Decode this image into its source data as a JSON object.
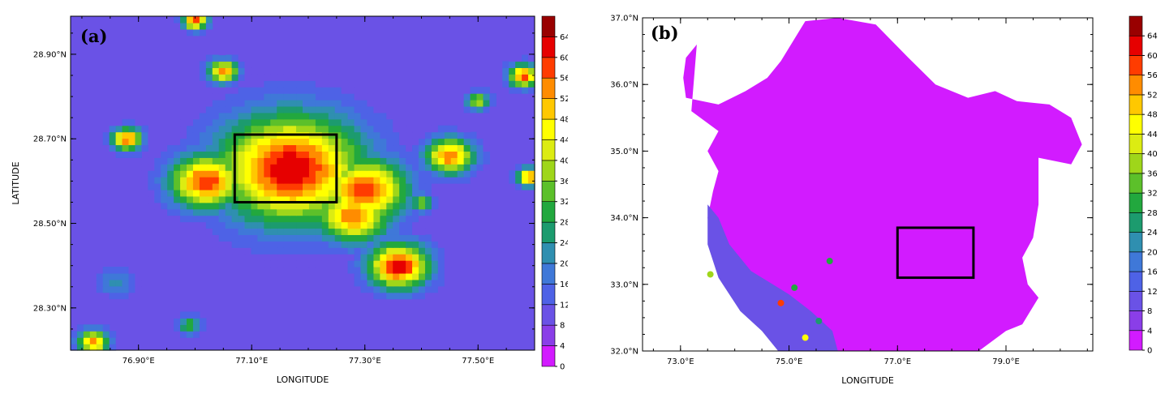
{
  "colorbar": {
    "levels": [
      0,
      4,
      8,
      12,
      16,
      20,
      24,
      28,
      32,
      36,
      40,
      44,
      48,
      52,
      56,
      60,
      64
    ],
    "colors": [
      "#d21bff",
      "#8a3ee8",
      "#6a52e6",
      "#4e62e6",
      "#3f78d8",
      "#2f8fb0",
      "#1c9b6e",
      "#22a83e",
      "#5cc02a",
      "#9fd61a",
      "#dcec12",
      "#ffff00",
      "#ffc800",
      "#ff8c00",
      "#ff3c00",
      "#e60000",
      "#990000"
    ]
  },
  "chart_data": [
    {
      "type": "heatmap",
      "panel_label": "(a)",
      "xlabel": "LONGITUDE",
      "ylabel": "LATITUDE",
      "xlim": [
        76.78,
        77.6
      ],
      "ylim": [
        28.2,
        28.99
      ],
      "xticks": [
        {
          "value": 76.9,
          "label": "76.90°E"
        },
        {
          "value": 77.1,
          "label": "77.10°E"
        },
        {
          "value": 77.3,
          "label": "77.30°E"
        },
        {
          "value": 77.5,
          "label": "77.50°E"
        }
      ],
      "yticks": [
        {
          "value": 28.3,
          "label": "28.30°N"
        },
        {
          "value": 28.5,
          "label": "28.50°N"
        },
        {
          "value": 28.7,
          "label": "28.70°N"
        },
        {
          "value": 28.9,
          "label": "28.90°N"
        }
      ],
      "box": {
        "lon": [
          77.07,
          77.25
        ],
        "lat": [
          28.55,
          28.71
        ]
      },
      "colorbar_range": [
        0,
        64
      ],
      "hotspots": [
        {
          "lon": 77.17,
          "lat": 28.63,
          "value": 64,
          "spread": 0.12
        },
        {
          "lon": 77.02,
          "lat": 28.6,
          "value": 60,
          "spread": 0.06
        },
        {
          "lon": 77.3,
          "lat": 28.58,
          "value": 60,
          "spread": 0.07
        },
        {
          "lon": 77.36,
          "lat": 28.4,
          "value": 64,
          "spread": 0.05
        },
        {
          "lon": 77.28,
          "lat": 28.52,
          "value": 56,
          "spread": 0.06
        },
        {
          "lon": 77.45,
          "lat": 28.66,
          "value": 56,
          "spread": 0.04
        },
        {
          "lon": 76.88,
          "lat": 28.7,
          "value": 58,
          "spread": 0.025
        },
        {
          "lon": 77.05,
          "lat": 28.86,
          "value": 54,
          "spread": 0.025
        },
        {
          "lon": 77.58,
          "lat": 28.85,
          "value": 58,
          "spread": 0.025
        },
        {
          "lon": 77.5,
          "lat": 28.79,
          "value": 40,
          "spread": 0.02
        },
        {
          "lon": 77.59,
          "lat": 28.61,
          "value": 56,
          "spread": 0.02
        },
        {
          "lon": 77.0,
          "lat": 28.98,
          "value": 58,
          "spread": 0.02
        },
        {
          "lon": 76.82,
          "lat": 28.22,
          "value": 56,
          "spread": 0.025
        },
        {
          "lon": 76.99,
          "lat": 28.26,
          "value": 32,
          "spread": 0.02
        },
        {
          "lon": 76.86,
          "lat": 28.36,
          "value": 22,
          "spread": 0.03
        },
        {
          "lon": 77.4,
          "lat": 28.55,
          "value": 36,
          "spread": 0.02
        }
      ],
      "background_value": 8
    },
    {
      "type": "heatmap",
      "panel_label": "(b)",
      "xlabel": "LONGITUDE",
      "ylabel": "LATITUDE",
      "xlim": [
        72.3,
        80.6
      ],
      "ylim": [
        32.0,
        37.0
      ],
      "xticks": [
        {
          "value": 73.0,
          "label": "73.0°E"
        },
        {
          "value": 75.0,
          "label": "75.0°E"
        },
        {
          "value": 77.0,
          "label": "77.0°E"
        },
        {
          "value": 79.0,
          "label": "79.0°E"
        }
      ],
      "yticks": [
        {
          "value": 32.0,
          "label": "32.0°N"
        },
        {
          "value": 33.0,
          "label": "33.0°N"
        },
        {
          "value": 34.0,
          "label": "34.0°N"
        },
        {
          "value": 35.0,
          "label": "35.0°N"
        },
        {
          "value": 36.0,
          "label": "36.0°N"
        },
        {
          "value": 37.0,
          "label": "37.0°N"
        }
      ],
      "box": {
        "lon": [
          77.0,
          78.4
        ],
        "lat": [
          33.1,
          33.85
        ]
      },
      "colorbar_range": [
        0,
        64
      ],
      "region_value": 0,
      "region_outline": [
        [
          73.3,
          36.6
        ],
        [
          73.1,
          36.4
        ],
        [
          73.05,
          36.1
        ],
        [
          73.1,
          35.8
        ],
        [
          73.7,
          35.7
        ],
        [
          74.2,
          35.9
        ],
        [
          74.6,
          36.1
        ],
        [
          74.85,
          36.35
        ],
        [
          75.3,
          36.95
        ],
        [
          75.9,
          37.0
        ],
        [
          76.6,
          36.9
        ],
        [
          77.2,
          36.4
        ],
        [
          77.7,
          36.0
        ],
        [
          78.3,
          35.8
        ],
        [
          78.8,
          35.9
        ],
        [
          79.2,
          35.75
        ],
        [
          79.8,
          35.7
        ],
        [
          80.2,
          35.5
        ],
        [
          80.4,
          35.1
        ],
        [
          80.2,
          34.8
        ],
        [
          79.6,
          34.9
        ],
        [
          79.6,
          34.2
        ],
        [
          79.5,
          33.7
        ],
        [
          79.3,
          33.4
        ],
        [
          79.4,
          33.0
        ],
        [
          79.6,
          32.8
        ],
        [
          79.3,
          32.4
        ],
        [
          79.0,
          32.3
        ],
        [
          78.5,
          32.0
        ],
        [
          75.8,
          32.0
        ],
        [
          75.6,
          32.15
        ],
        [
          75.3,
          32.4
        ],
        [
          75.0,
          32.3
        ],
        [
          74.7,
          32.4
        ],
        [
          74.6,
          32.7
        ],
        [
          74.2,
          32.9
        ],
        [
          73.8,
          33.2
        ],
        [
          73.6,
          33.6
        ],
        [
          73.5,
          34.0
        ],
        [
          73.6,
          34.4
        ],
        [
          73.7,
          34.7
        ],
        [
          73.5,
          35.0
        ],
        [
          73.7,
          35.3
        ],
        [
          73.2,
          35.6
        ]
      ],
      "lowland": [
        [
          73.5,
          34.2
        ],
        [
          73.7,
          34.0
        ],
        [
          73.9,
          33.6
        ],
        [
          74.3,
          33.2
        ],
        [
          74.7,
          33.0
        ],
        [
          75.0,
          32.85
        ],
        [
          75.4,
          32.6
        ],
        [
          75.8,
          32.3
        ],
        [
          75.9,
          32.0
        ],
        [
          74.8,
          32.0
        ],
        [
          74.5,
          32.3
        ],
        [
          74.1,
          32.6
        ],
        [
          73.7,
          33.1
        ],
        [
          73.5,
          33.6
        ]
      ],
      "lowland_value": 10,
      "spots": [
        {
          "lon": 74.85,
          "lat": 32.72,
          "value": 58
        },
        {
          "lon": 73.55,
          "lat": 33.15,
          "value": 36
        },
        {
          "lon": 75.3,
          "lat": 32.2,
          "value": 44
        },
        {
          "lon": 75.1,
          "lat": 32.95,
          "value": 28
        },
        {
          "lon": 75.75,
          "lat": 33.35,
          "value": 30
        },
        {
          "lon": 75.55,
          "lat": 32.45,
          "value": 26
        }
      ]
    }
  ]
}
